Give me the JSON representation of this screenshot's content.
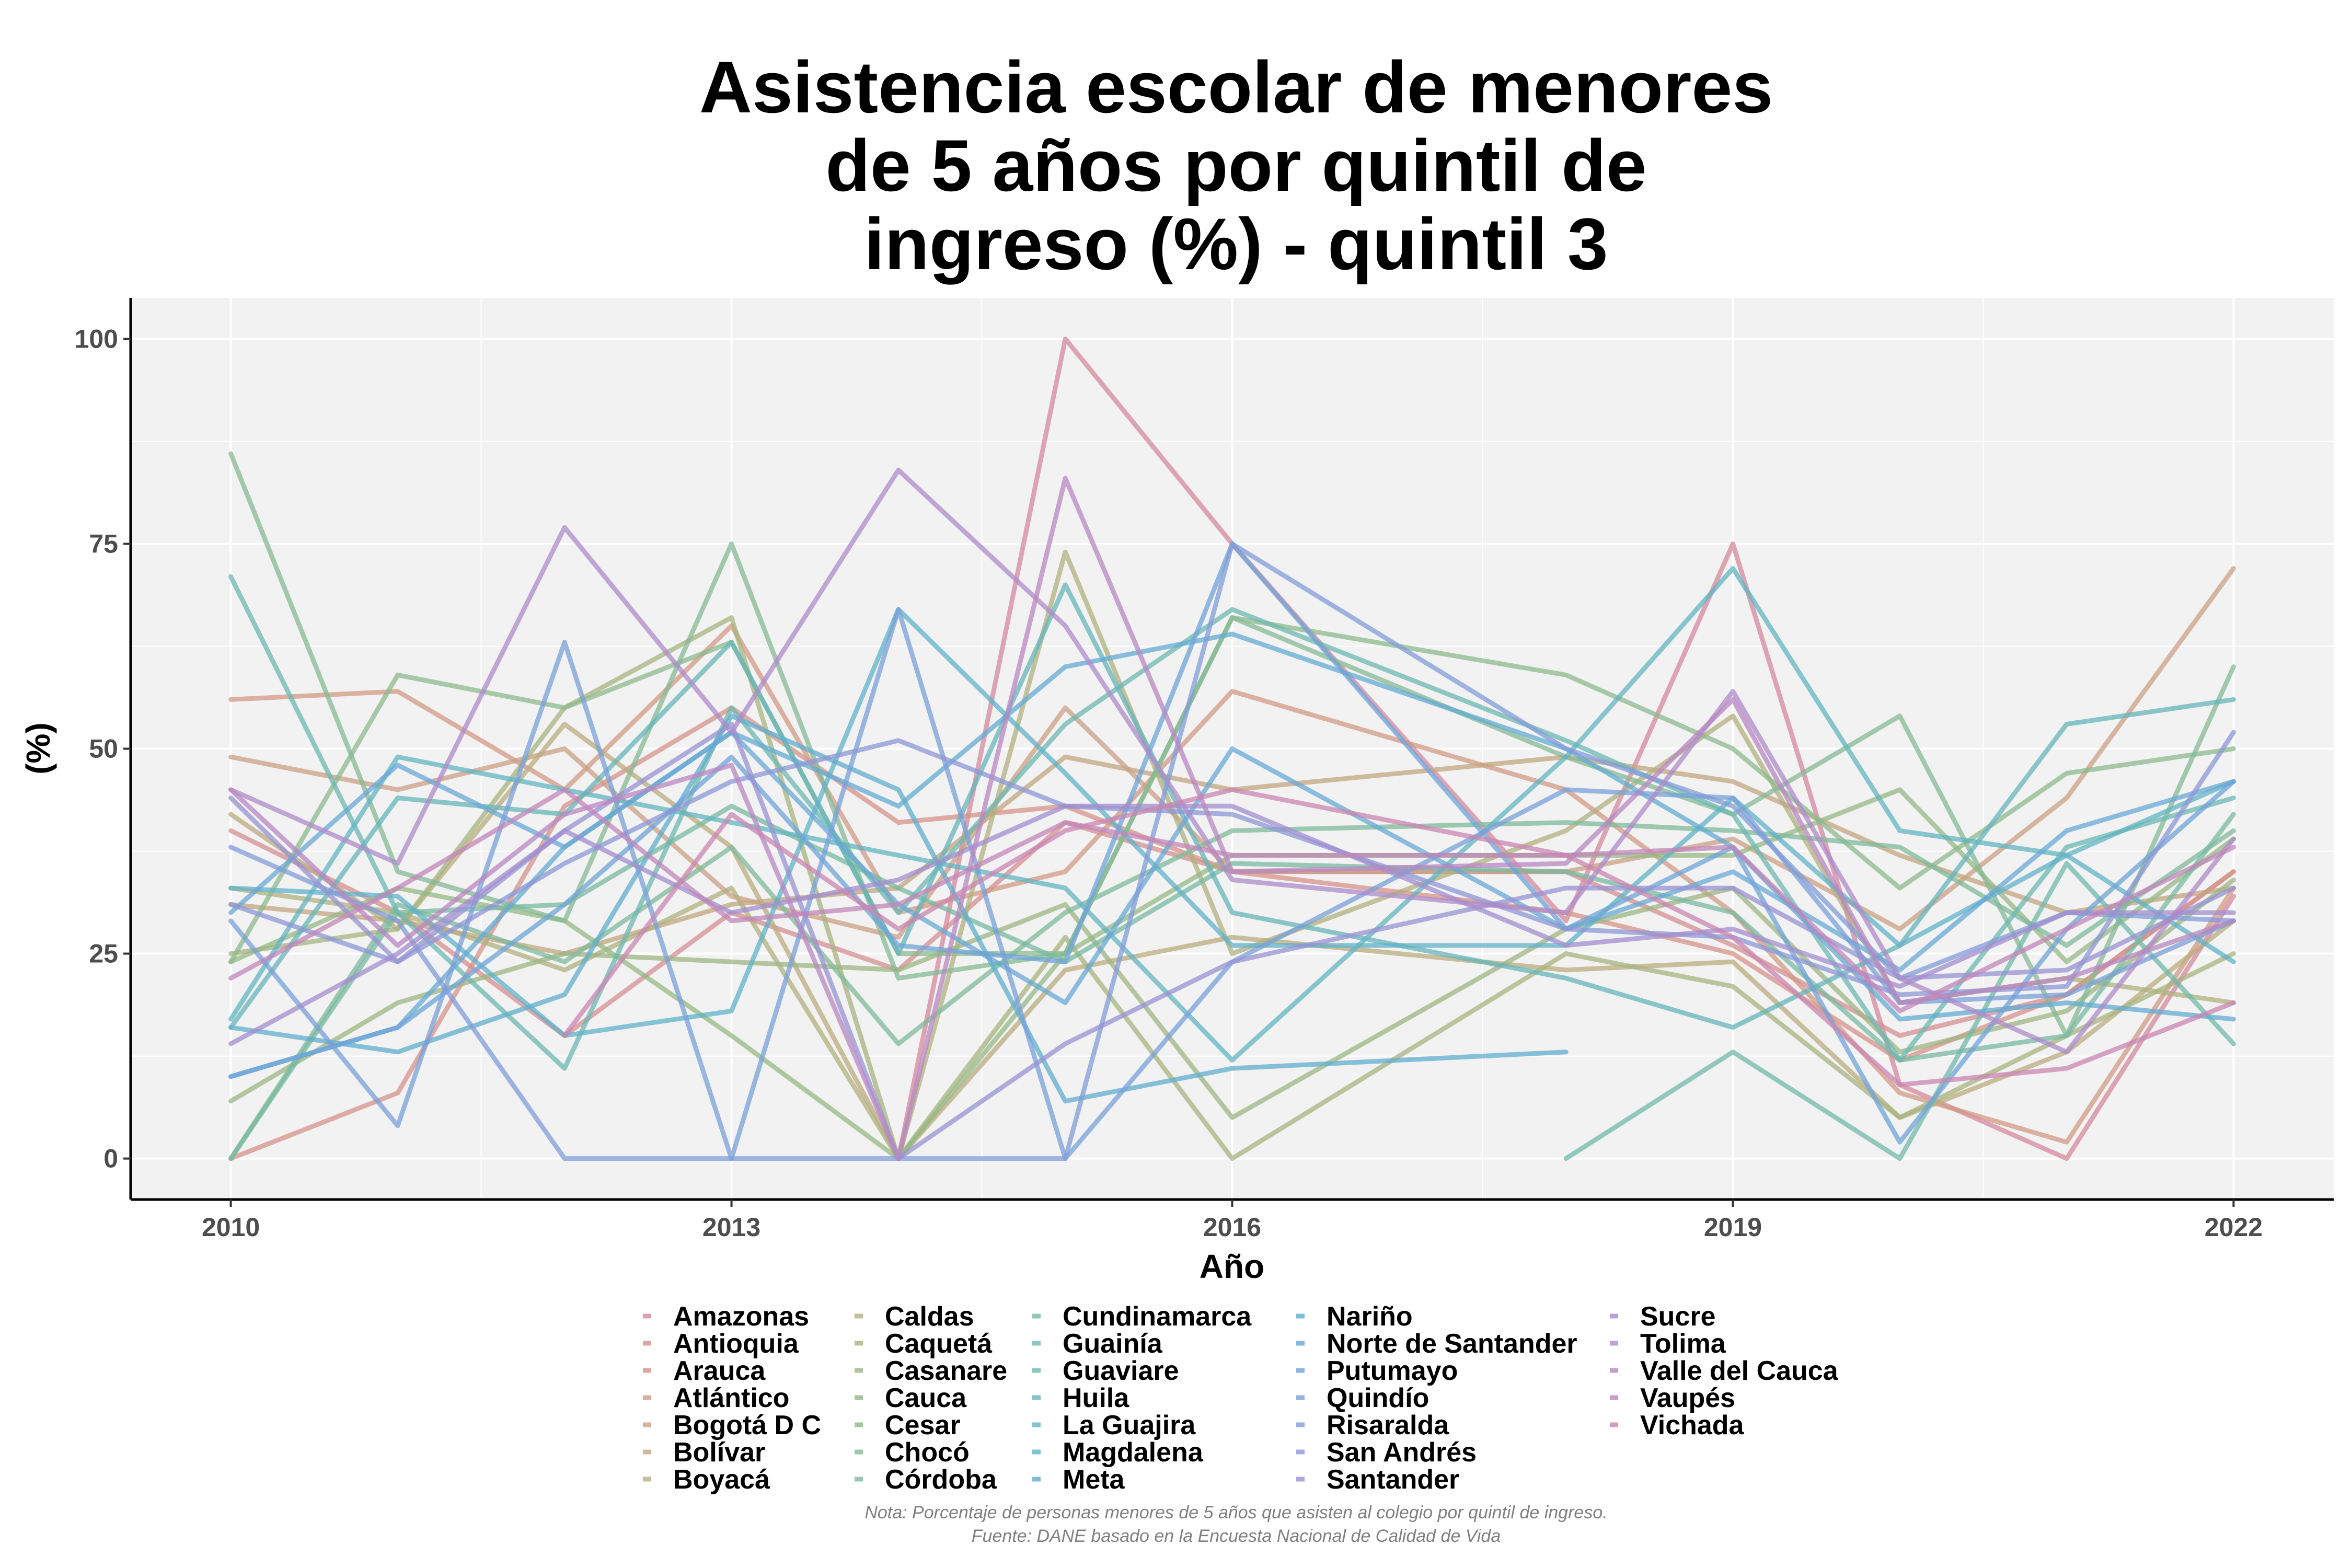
{
  "chart_data": {
    "type": "line",
    "title_lines": [
      "Asistencia escolar de menores",
      "de 5 años por quintil de",
      "ingreso (%) - quintil 3"
    ],
    "xlabel": "Año",
    "ylabel": "(%)",
    "x_ticks": [
      2010,
      2013,
      2016,
      2019,
      2022
    ],
    "y_ticks": [
      0,
      25,
      50,
      75,
      100
    ],
    "xlim": [
      2009.4,
      2022.6
    ],
    "ylim": [
      -5,
      105
    ],
    "grid": true,
    "legend_position": "bottom",
    "caption_lines": [
      "Nota: Porcentaje de personas menores de 5 años que asisten al colegio por quintil de ingreso.",
      "Fuente: DANE basado en la Encuesta Nacional de Calidad de Vida"
    ],
    "years": [
      2010,
      2011,
      2012,
      2013,
      2014,
      2015,
      2016,
      2018,
      2019,
      2020,
      2021,
      2022
    ],
    "series": [
      {
        "name": "Amazonas",
        "color": "#d48a9d",
        "values": [
          null,
          null,
          null,
          null,
          0,
          100,
          75,
          29,
          75,
          9,
          0,
          32
        ]
      },
      {
        "name": "Antioquia",
        "color": "#d68f92",
        "values": [
          40,
          30,
          15,
          30,
          23,
          41,
          35,
          35,
          26,
          15,
          20,
          35
        ]
      },
      {
        "name": "Arauca",
        "color": "#d6938a",
        "values": [
          0,
          8,
          43,
          55,
          41,
          43,
          35,
          30,
          25,
          12,
          20,
          35
        ]
      },
      {
        "name": "Atlántico",
        "color": "#d29a86",
        "values": [
          56,
          57,
          45,
          65,
          30,
          35,
          57,
          45,
          30,
          8,
          2,
          33
        ]
      },
      {
        "name": "Bogotá D C",
        "color": "#cba084",
        "values": [
          49,
          45,
          50,
          32,
          27,
          55,
          35,
          35,
          39,
          28,
          44,
          72
        ]
      },
      {
        "name": "Bolívar",
        "color": "#c3a67f",
        "values": [
          31,
          29,
          25,
          31,
          33,
          49,
          45,
          49,
          46,
          37,
          30,
          33
        ]
      },
      {
        "name": "Boyacá",
        "color": "#b9ac7f",
        "values": [
          42,
          28,
          53,
          38,
          0,
          23,
          27,
          23,
          24,
          5,
          13,
          29
        ]
      },
      {
        "name": "Caldas",
        "color": "#b0b07f",
        "values": [
          33,
          30,
          23,
          33,
          0,
          74,
          25,
          40,
          54,
          19,
          22,
          19
        ]
      },
      {
        "name": "Caquetá",
        "color": "#a7b47f",
        "values": [
          25,
          28,
          55,
          66,
          0,
          27,
          0,
          25,
          21,
          5,
          15,
          25
        ]
      },
      {
        "name": "Casanare",
        "color": "#9eb682",
        "values": [
          7,
          19,
          25,
          24,
          23,
          31,
          5,
          28,
          33,
          13,
          18,
          34
        ]
      },
      {
        "name": "Cauca",
        "color": "#95b886",
        "values": [
          24,
          33,
          29,
          15,
          0,
          25,
          37,
          37,
          37,
          45,
          24,
          39
        ]
      },
      {
        "name": "Cesar",
        "color": "#8cb98d",
        "values": [
          24,
          59,
          55,
          63,
          25,
          25,
          66,
          59,
          50,
          33,
          47,
          50
        ]
      },
      {
        "name": "Chocó",
        "color": "#85ba94",
        "values": [
          86,
          35,
          29,
          75,
          22,
          25,
          66,
          49,
          42,
          54,
          15,
          60
        ]
      },
      {
        "name": "Córdoba",
        "color": "#7fba9b",
        "values": [
          0,
          31,
          24,
          38,
          14,
          30,
          40,
          41,
          40,
          38,
          26,
          40
        ]
      },
      {
        "name": "Cundinamarca",
        "color": "#78baa2",
        "values": [
          0,
          30,
          31,
          43,
          33,
          24,
          36,
          35,
          30,
          12,
          15,
          42
        ]
      },
      {
        "name": "Guainía",
        "color": "#72b9aa",
        "values": [
          null,
          null,
          null,
          null,
          null,
          null,
          null,
          0,
          13,
          0,
          36,
          14
        ]
      },
      {
        "name": "Guaviare",
        "color": "#6cb8b2",
        "values": [
          71,
          30,
          11,
          55,
          30,
          53,
          67,
          51,
          42,
          12,
          38,
          44
        ]
      },
      {
        "name": "Huila",
        "color": "#66b6b9",
        "values": [
          16,
          44,
          42,
          63,
          25,
          70,
          30,
          22,
          16,
          26,
          53,
          56
        ]
      },
      {
        "name": "La Guajira",
        "color": "#62b4c1",
        "values": [
          17,
          49,
          45,
          41,
          37,
          33,
          12,
          49,
          72,
          40,
          37,
          46
        ]
      },
      {
        "name": "Magdalena",
        "color": "#60b1c8",
        "values": [
          33,
          32,
          15,
          18,
          67,
          47,
          26,
          26,
          44,
          26,
          37,
          24
        ]
      },
      {
        "name": "Meta",
        "color": "#60aece",
        "values": [
          16,
          13,
          20,
          54,
          45,
          7,
          11,
          13,
          null,
          null,
          null,
          null
        ]
      },
      {
        "name": "Nariño",
        "color": "#63abd2",
        "values": [
          10,
          16,
          38,
          52,
          43,
          60,
          64,
          50,
          38,
          17,
          19,
          17
        ]
      },
      {
        "name": "Norte de Santander",
        "color": "#68a8d6",
        "values": [
          30,
          48,
          38,
          52,
          31,
          19,
          50,
          28,
          35,
          23,
          40,
          46
        ]
      },
      {
        "name": "Putumayo",
        "color": "#6fa4d8",
        "values": [
          10,
          16,
          31,
          49,
          26,
          24,
          75,
          28,
          38,
          2,
          28,
          46
        ]
      },
      {
        "name": "Quindío",
        "color": "#78a0d8",
        "values": [
          29,
          4,
          63,
          0,
          67,
          0,
          24,
          45,
          44,
          19,
          20,
          29
        ]
      },
      {
        "name": "Risaralda",
        "color": "#819cd8",
        "values": [
          38,
          29,
          0,
          0,
          0,
          0,
          75,
          50,
          43,
          22,
          30,
          29
        ]
      },
      {
        "name": "San Andrés",
        "color": "#8c97d6",
        "values": [
          31,
          24,
          36,
          46,
          51,
          43,
          42,
          28,
          27,
          20,
          21,
          52
        ]
      },
      {
        "name": "Santander",
        "color": "#9793d3",
        "values": [
          44,
          24,
          40,
          53,
          0,
          14,
          24,
          33,
          33,
          22,
          23,
          33
        ]
      },
      {
        "name": "Sucre",
        "color": "#a28ecf",
        "values": [
          14,
          25,
          40,
          30,
          34,
          43,
          43,
          26,
          28,
          21,
          30,
          30
        ]
      },
      {
        "name": "Tolima",
        "color": "#ad8bc9",
        "values": [
          45,
          36,
          77,
          52,
          84,
          65,
          34,
          30,
          57,
          22,
          13,
          39
        ]
      },
      {
        "name": "Valle del Cauca",
        "color": "#b887c2",
        "values": [
          45,
          26,
          42,
          48,
          0,
          83,
          35,
          36,
          56,
          19,
          22,
          29
        ]
      },
      {
        "name": "Vaupés",
        "color": "#c285ba",
        "values": [
          22,
          33,
          45,
          29,
          31,
          41,
          37,
          37,
          38,
          18,
          28,
          38
        ]
      },
      {
        "name": "Vichada",
        "color": "#ca86b2",
        "values": [
          null,
          null,
          15,
          42,
          28,
          40,
          45,
          37,
          27,
          9,
          11,
          19
        ]
      }
    ]
  }
}
